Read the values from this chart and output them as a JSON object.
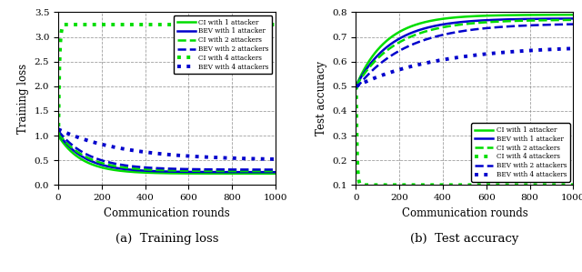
{
  "left_caption": "(a)  Training loss",
  "right_caption": "(b)  Test accuracy",
  "left_ylabel": "Training loss",
  "right_ylabel": "Test accuracy",
  "xlabel": "Communication rounds",
  "xlim": [
    0,
    1000
  ],
  "left_ylim": [
    0,
    3.5
  ],
  "right_ylim": [
    0.1,
    0.8
  ],
  "left_yticks": [
    0,
    0.5,
    1.0,
    1.5,
    2.0,
    2.5,
    3.0,
    3.5
  ],
  "right_yticks": [
    0.1,
    0.2,
    0.3,
    0.4,
    0.5,
    0.6,
    0.7,
    0.8
  ],
  "xticks": [
    0,
    200,
    400,
    600,
    800,
    1000
  ],
  "green": "#00dd00",
  "blue": "#0000cc",
  "left_legend": [
    {
      "label": "CI with 1 attacker",
      "color": "#00dd00",
      "ls": "solid",
      "lw": 1.8
    },
    {
      "label": "BEV with 1 attacker",
      "color": "#0000cc",
      "ls": "solid",
      "lw": 1.8
    },
    {
      "label": "CI with 2 attackers",
      "color": "#00dd00",
      "ls": "dashed",
      "lw": 1.8
    },
    {
      "label": "BEV with 2 attackers",
      "color": "#0000cc",
      "ls": "dashed",
      "lw": 1.8
    },
    {
      "label": "CI with 4 attackers",
      "color": "#00dd00",
      "ls": "dotted",
      "lw": 2.8
    },
    {
      "label": "BEV with 4 attackers",
      "color": "#0000cc",
      "ls": "dotted",
      "lw": 2.8
    }
  ],
  "right_legend": [
    {
      "label": "CI with 1 attacker",
      "color": "#00dd00",
      "ls": "solid",
      "lw": 1.8
    },
    {
      "label": "BEV with 1 attacker",
      "color": "#0000cc",
      "ls": "solid",
      "lw": 1.8
    },
    {
      "label": "CI with 2 attackers",
      "color": "#00dd00",
      "ls": "dashed",
      "lw": 1.8
    },
    {
      "label": "CI with 4 attackers",
      "color": "#00dd00",
      "ls": "dotted",
      "lw": 2.8
    },
    {
      "label": "BEV with 2 attackers",
      "color": "#0000cc",
      "ls": "dashed",
      "lw": 1.8
    },
    {
      "label": "BEV with 4 attackers",
      "color": "#0000cc",
      "ls": "dotted",
      "lw": 2.8
    }
  ]
}
